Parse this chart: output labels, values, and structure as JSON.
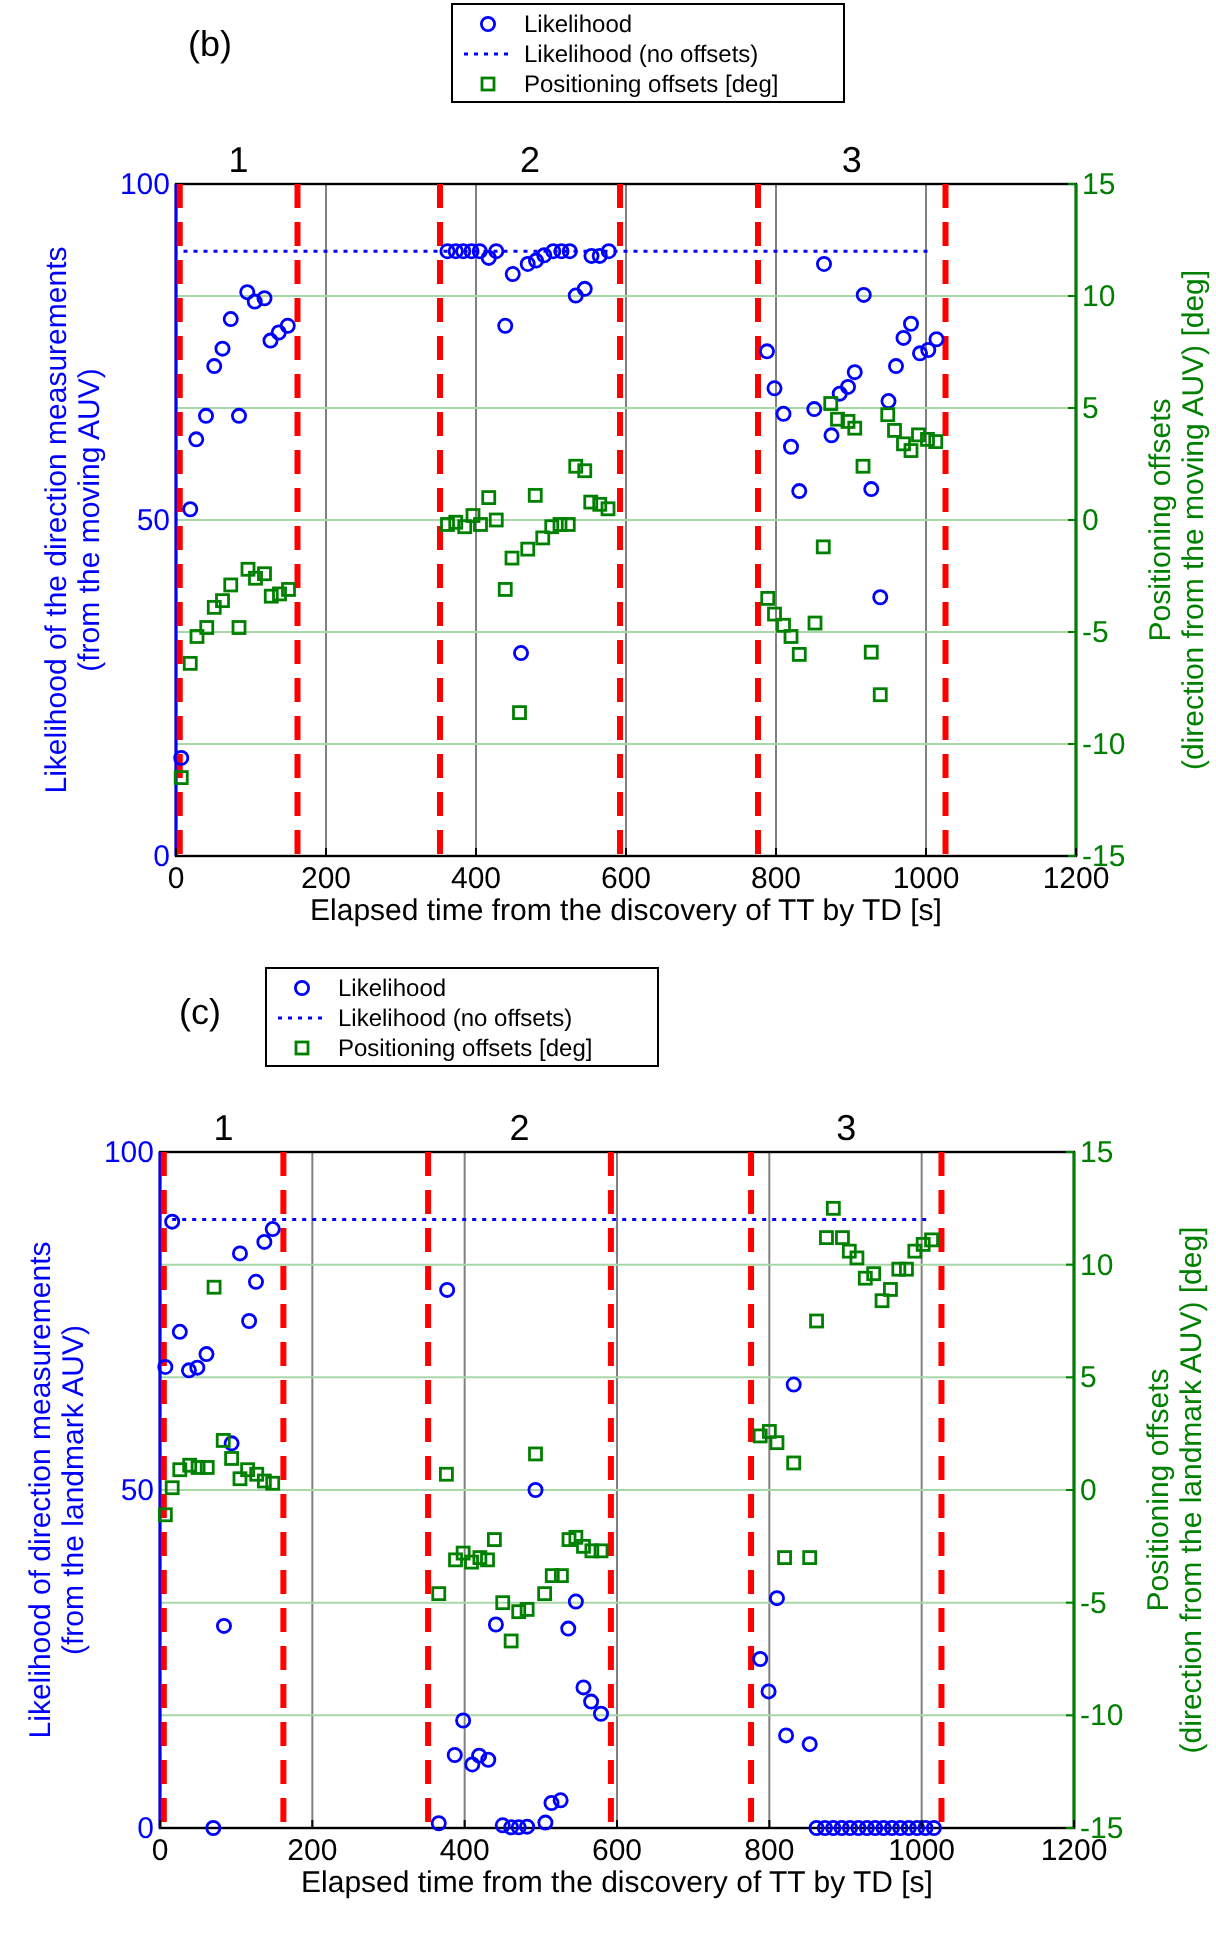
{
  "chart_data": [
    {
      "type": "scatter",
      "title": "(b)",
      "xlabel": "Elapsed time from the discovery of TT by TD [s]",
      "ylabel": "Likelihood of the direction measurements\n(from the moving AUV)",
      "y2label": "Positioning offsets\n(direction from the moving AUV) [deg]",
      "xlim": [
        0,
        1200
      ],
      "xticks": [
        0,
        200,
        400,
        600,
        800,
        1000,
        1200
      ],
      "ylim": [
        0,
        100
      ],
      "yticks": [
        0,
        50,
        100
      ],
      "y2lim": [
        -15,
        15
      ],
      "y2ticks": [
        -15,
        -10,
        -5,
        0,
        5,
        10,
        15
      ],
      "grid": true,
      "legend": "top",
      "annotations": [
        "1",
        "2",
        "3"
      ],
      "ref_lines": [
        {
          "axis": "x",
          "value": 5,
          "color": "#ff0000",
          "line_style": "dashed"
        },
        {
          "axis": "x",
          "value": 162,
          "color": "#ff0000",
          "line_style": "dashed"
        },
        {
          "axis": "x",
          "value": 352,
          "color": "#ff0000",
          "line_style": "dashed"
        },
        {
          "axis": "x",
          "value": 592,
          "color": "#ff0000",
          "line_style": "dashed"
        },
        {
          "axis": "x",
          "value": 776,
          "color": "#ff0000",
          "line_style": "dashed"
        },
        {
          "axis": "x",
          "value": 1026,
          "color": "#ff0000",
          "line_style": "dashed"
        }
      ],
      "series": [
        {
          "name": "Likelihood",
          "type": "scatter",
          "marker": "circle",
          "color": "#0000ff",
          "x": [
            7,
            19,
            27,
            40,
            51,
            62,
            73,
            84,
            95,
            105,
            118,
            126,
            137,
            149,
            362,
            373,
            383,
            394,
            405,
            417,
            427,
            439,
            449,
            460,
            469,
            480,
            491,
            503,
            514,
            525,
            533,
            545,
            554,
            565,
            577,
            788,
            798,
            810,
            820,
            831,
            851,
            864,
            874,
            885,
            896,
            905,
            917,
            927,
            939,
            950,
            960,
            970,
            980,
            992,
            1003,
            1014
          ],
          "values": [
            14.6,
            51.6,
            62,
            65.5,
            72.9,
            75.5,
            79.9,
            65.5,
            83.9,
            82.5,
            83,
            76.7,
            77.9,
            78.9,
            90,
            90,
            90,
            90,
            90,
            89,
            90,
            78.9,
            86.6,
            30.2,
            88.1,
            88.6,
            89.4,
            90,
            90,
            90,
            83.4,
            84.4,
            89.3,
            89.3,
            90,
            75.1,
            69.6,
            65.8,
            60.9,
            54.3,
            66.5,
            88.1,
            62.6,
            68.8,
            69.8,
            72,
            83.5,
            54.6,
            38.5,
            67.7,
            72.9,
            77.1,
            79.2,
            74.8,
            75.3,
            76.9
          ]
        },
        {
          "name": "Likelihood (no offsets)",
          "type": "line",
          "marker": "none",
          "line_style": "dotted",
          "color": "#0000ff",
          "x": [
            10,
            1010
          ],
          "values": [
            90,
            90
          ]
        },
        {
          "name": "Positioning offsets [deg]",
          "type": "scatter",
          "marker": "square",
          "axis": "y2",
          "color": "#008000",
          "x": [
            7,
            19,
            28,
            41,
            51,
            62,
            73,
            84,
            96,
            106,
            118,
            127,
            138,
            150,
            362,
            373,
            385,
            396,
            406,
            417,
            427,
            439,
            448,
            458,
            469,
            479,
            489,
            501,
            512,
            523,
            533,
            545,
            553,
            565,
            576,
            789,
            798,
            810,
            820,
            831,
            852,
            863,
            873,
            882,
            896,
            905,
            916,
            927,
            939,
            949,
            958,
            970,
            980,
            990,
            1002,
            1013
          ],
          "values": [
            -11.5,
            -6.4,
            -5.2,
            -4.8,
            -3.9,
            -3.6,
            -2.9,
            -4.8,
            -2.2,
            -2.6,
            -2.4,
            -3.4,
            -3.3,
            -3.1,
            -0.2,
            -0.1,
            -0.3,
            0.2,
            -0.2,
            1,
            0,
            -3.1,
            -1.7,
            -8.6,
            -1.3,
            1.1,
            -0.8,
            -0.3,
            -0.2,
            -0.2,
            2.4,
            2.2,
            0.8,
            0.7,
            0.5,
            -3.5,
            -4.2,
            -4.7,
            -5.2,
            -6,
            -4.6,
            -1.2,
            5.2,
            4.5,
            4.4,
            4.1,
            2.4,
            -5.9,
            -7.8,
            4.7,
            4,
            3.4,
            3.1,
            3.8,
            3.6,
            3.5
          ]
        }
      ]
    },
    {
      "type": "scatter",
      "title": "(c)",
      "xlabel": "Elapsed time from the discovery of TT by TD [s]",
      "ylabel": "Likelihood of direction measurements\n(from the landmark AUV)",
      "y2label": "Positioning offsets\n(direction from the landmark AUV) [deg]",
      "xlim": [
        0,
        1200
      ],
      "xticks": [
        0,
        200,
        400,
        600,
        800,
        1000,
        1200
      ],
      "ylim": [
        0,
        100
      ],
      "yticks": [
        0,
        50,
        100
      ],
      "y2lim": [
        -15,
        15
      ],
      "y2ticks": [
        -15,
        -10,
        -5,
        0,
        5,
        10,
        15
      ],
      "grid": true,
      "legend": "top",
      "annotations": [
        "1",
        "2",
        "3"
      ],
      "ref_lines": [
        {
          "axis": "x",
          "value": 5,
          "color": "#ff0000",
          "line_style": "dashed"
        },
        {
          "axis": "x",
          "value": 162,
          "color": "#ff0000",
          "line_style": "dashed"
        },
        {
          "axis": "x",
          "value": 352,
          "color": "#ff0000",
          "line_style": "dashed"
        },
        {
          "axis": "x",
          "value": 592,
          "color": "#ff0000",
          "line_style": "dashed"
        },
        {
          "axis": "x",
          "value": 776,
          "color": "#ff0000",
          "line_style": "dashed"
        },
        {
          "axis": "x",
          "value": 1026,
          "color": "#ff0000",
          "line_style": "dashed"
        }
      ],
      "series": [
        {
          "name": "Likelihood",
          "type": "scatter",
          "marker": "circle",
          "color": "#0000ff",
          "x": [
            7,
            16,
            26,
            38,
            49,
            61,
            70,
            84,
            94,
            105,
            117,
            126,
            137,
            148,
            366,
            377,
            387,
            398,
            410,
            419,
            431,
            441,
            450,
            461,
            471,
            482,
            493,
            506,
            514,
            526,
            536,
            546,
            556,
            566,
            579,
            788,
            799,
            810,
            822,
            832,
            853,
            862,
            873,
            884,
            895,
            906,
            917,
            928,
            939,
            950,
            961,
            972,
            983,
            994,
            1005,
            1016
          ],
          "values": [
            68.2,
            89.7,
            73.4,
            67.7,
            68.1,
            70.1,
            0,
            29.9,
            56.9,
            85,
            75,
            80.8,
            86.7,
            88.6,
            0.7,
            79.6,
            10.8,
            15.9,
            9.4,
            10.7,
            10.1,
            30.1,
            0.4,
            0.1,
            0.1,
            0.2,
            50,
            0.8,
            3.7,
            4.1,
            29.5,
            33.5,
            20.8,
            18.7,
            16.9,
            25,
            20.2,
            34,
            13.7,
            65.6,
            12.4,
            0,
            0,
            0,
            0,
            0,
            0,
            0,
            0,
            0,
            0,
            0,
            0,
            0,
            0,
            0
          ]
        },
        {
          "name": "Likelihood (no offsets)",
          "type": "line",
          "marker": "none",
          "line_style": "dotted",
          "color": "#0000ff",
          "x": [
            16,
            1013
          ],
          "values": [
            90,
            90
          ]
        },
        {
          "name": "Positioning offsets [deg]",
          "type": "scatter",
          "marker": "square",
          "axis": "y2",
          "color": "#008000",
          "x": [
            7,
            16,
            26,
            39,
            50,
            62,
            71,
            83,
            94,
            105,
            115,
            127,
            137,
            148,
            366,
            376,
            388,
            398,
            409,
            420,
            430,
            439,
            450,
            461,
            471,
            482,
            493,
            505,
            515,
            527,
            537,
            546,
            556,
            567,
            579,
            788,
            800,
            810,
            820,
            832,
            853,
            862,
            875,
            884,
            896,
            905,
            915,
            926,
            937,
            948,
            959,
            970,
            980,
            991,
            1002,
            1013
          ],
          "values": [
            -1.1,
            0.1,
            0.9,
            1.1,
            1,
            1,
            9,
            2.2,
            1.4,
            0.5,
            0.9,
            0.7,
            0.4,
            0.3,
            -4.6,
            0.7,
            -3.1,
            -2.8,
            -3.2,
            -3,
            -3.1,
            -2.2,
            -5,
            -6.7,
            -5.4,
            -5.3,
            1.6,
            -4.6,
            -3.8,
            -3.8,
            -2.2,
            -2.1,
            -2.5,
            -2.7,
            -2.7,
            2.4,
            2.6,
            2.1,
            -3,
            1.2,
            -3,
            7.5,
            11.2,
            12.5,
            11.2,
            10.6,
            10.3,
            9.4,
            9.6,
            8.4,
            8.9,
            9.8,
            9.8,
            10.6,
            10.9,
            11.1
          ]
        }
      ]
    }
  ]
}
